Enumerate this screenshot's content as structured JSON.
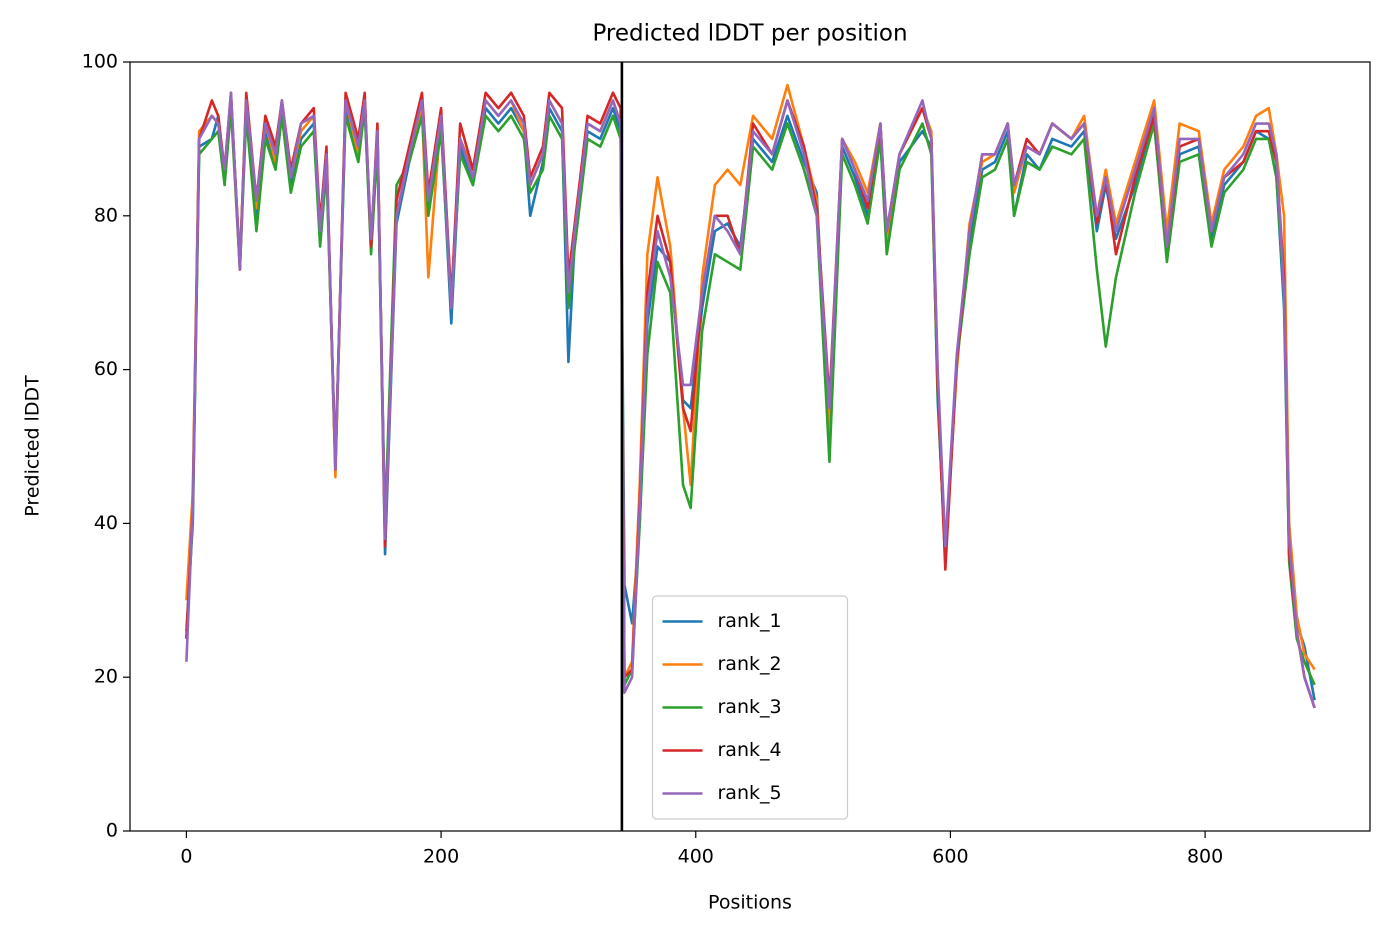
{
  "chart_data": {
    "type": "line",
    "title": "Predicted lDDT per position",
    "xlabel": "Positions",
    "ylabel": "Predicted lDDT",
    "xlim": [
      -44.3,
      929.5
    ],
    "ylim": [
      0,
      100
    ],
    "xticks": [
      0,
      200,
      400,
      600,
      800
    ],
    "yticks": [
      0,
      20,
      40,
      60,
      80,
      100
    ],
    "legend": "lower center",
    "vlines": [
      {
        "x": 342,
        "color": "#000000"
      }
    ],
    "x": [
      0,
      5,
      10,
      20,
      25,
      30,
      35,
      42,
      47,
      55,
      62,
      70,
      75,
      82,
      90,
      100,
      105,
      110,
      117,
      125,
      135,
      140,
      145,
      150,
      156,
      165,
      175,
      185,
      190,
      200,
      208,
      215,
      225,
      235,
      245,
      255,
      265,
      270,
      280,
      285,
      295,
      300,
      305,
      315,
      325,
      335,
      341,
      344,
      350,
      356,
      362,
      370,
      380,
      390,
      396,
      405,
      415,
      425,
      435,
      445,
      460,
      472,
      485,
      495,
      505,
      515,
      525,
      535,
      545,
      550,
      560,
      578,
      585,
      590,
      596,
      605,
      615,
      625,
      635,
      645,
      650,
      660,
      670,
      680,
      695,
      705,
      715,
      722,
      730,
      745,
      760,
      770,
      780,
      795,
      805,
      815,
      830,
      840,
      850,
      856,
      862,
      866,
      872,
      878,
      886
    ],
    "series": [
      {
        "name": "rank_1",
        "color": "#1f77b4",
        "values": [
          26,
          40,
          89,
          90,
          93,
          85,
          95,
          74,
          94,
          80,
          91,
          87,
          94,
          84,
          90,
          92,
          77,
          87,
          48,
          94,
          88,
          94,
          76,
          90,
          36,
          79,
          87,
          94,
          81,
          92,
          66,
          89,
          84,
          94,
          92,
          94,
          91,
          80,
          87,
          94,
          91,
          61,
          77,
          91,
          90,
          94,
          91,
          32,
          27,
          40,
          66,
          76,
          74,
          56,
          55,
          68,
          78,
          79,
          76,
          90,
          87,
          93,
          87,
          83,
          50,
          89,
          85,
          80,
          90,
          76,
          87,
          91,
          89,
          56,
          36,
          61,
          76,
          86,
          87,
          91,
          80,
          88,
          86,
          90,
          89,
          91,
          78,
          84,
          77,
          84,
          92,
          75,
          88,
          89,
          77,
          84,
          87,
          91,
          90,
          85,
          68,
          36,
          27,
          24,
          17
        ]
      },
      {
        "name": "rank_2",
        "color": "#ff7f0e",
        "values": [
          30,
          44,
          91,
          93,
          92,
          86,
          95,
          74,
          95,
          81,
          92,
          87,
          94,
          85,
          91,
          93,
          78,
          88,
          46,
          95,
          88,
          95,
          76,
          91,
          38,
          80,
          88,
          94,
          72,
          93,
          69,
          90,
          86,
          95,
          93,
          95,
          91,
          84,
          88,
          95,
          92,
          70,
          78,
          92,
          91,
          95,
          92,
          20,
          22,
          45,
          75,
          85,
          76,
          55,
          45,
          72,
          84,
          86,
          84,
          93,
          90,
          97,
          89,
          82,
          52,
          90,
          87,
          83,
          92,
          77,
          88,
          94,
          91,
          58,
          36,
          60,
          79,
          87,
          88,
          92,
          83,
          89,
          88,
          92,
          90,
          93,
          80,
          86,
          79,
          87,
          95,
          78,
          92,
          91,
          79,
          86,
          89,
          93,
          94,
          88,
          80,
          40,
          28,
          23,
          21
        ]
      },
      {
        "name": "rank_3",
        "color": "#2ca02c",
        "values": [
          25,
          41,
          88,
          90,
          91,
          84,
          94,
          73,
          93,
          78,
          90,
          86,
          93,
          83,
          89,
          91,
          76,
          86,
          48,
          93,
          87,
          94,
          75,
          89,
          40,
          84,
          87,
          93,
          80,
          91,
          68,
          88,
          84,
          93,
          91,
          93,
          90,
          83,
          86,
          93,
          90,
          68,
          76,
          90,
          89,
          93,
          90,
          19,
          21,
          40,
          62,
          74,
          70,
          45,
          42,
          65,
          75,
          74,
          73,
          89,
          86,
          92,
          86,
          80,
          48,
          88,
          84,
          79,
          90,
          75,
          86,
          92,
          88,
          57,
          35,
          61,
          75,
          85,
          86,
          90,
          80,
          87,
          86,
          89,
          88,
          90,
          73,
          63,
          72,
          83,
          92,
          74,
          87,
          88,
          76,
          83,
          86,
          90,
          90,
          85,
          70,
          35,
          25,
          22,
          19
        ]
      },
      {
        "name": "rank_4",
        "color": "#d62728",
        "values": [
          25,
          42,
          90,
          95,
          93,
          86,
          96,
          73,
          96,
          82,
          93,
          89,
          95,
          86,
          92,
          94,
          79,
          89,
          47,
          96,
          90,
          96,
          76,
          92,
          37,
          82,
          89,
          96,
          83,
          94,
          69,
          92,
          86,
          96,
          94,
          96,
          93,
          85,
          89,
          96,
          94,
          72,
          79,
          93,
          92,
          96,
          94,
          20,
          21,
          43,
          70,
          80,
          74,
          55,
          52,
          70,
          80,
          80,
          75,
          92,
          88,
          95,
          89,
          81,
          56,
          90,
          86,
          81,
          92,
          78,
          88,
          94,
          90,
          58,
          34,
          61,
          78,
          88,
          88,
          92,
          84,
          90,
          88,
          92,
          90,
          92,
          79,
          85,
          75,
          85,
          93,
          76,
          89,
          90,
          78,
          85,
          87,
          91,
          91,
          87,
          72,
          36,
          26,
          20,
          16
        ]
      },
      {
        "name": "rank_5",
        "color": "#9467bd",
        "values": [
          22,
          42,
          90,
          93,
          92,
          86,
          96,
          73,
          95,
          82,
          92,
          88,
          95,
          85,
          92,
          93,
          78,
          88,
          47,
          95,
          89,
          95,
          77,
          91,
          38,
          80,
          88,
          95,
          82,
          93,
          68,
          90,
          85,
          95,
          93,
          95,
          92,
          84,
          88,
          95,
          92,
          70,
          78,
          92,
          91,
          95,
          92,
          18,
          20,
          42,
          68,
          78,
          72,
          58,
          58,
          70,
          80,
          78,
          75,
          91,
          88,
          95,
          88,
          80,
          55,
          90,
          86,
          82,
          92,
          78,
          88,
          95,
          90,
          60,
          37,
          62,
          78,
          88,
          88,
          92,
          84,
          89,
          88,
          92,
          90,
          92,
          80,
          85,
          78,
          86,
          94,
          76,
          90,
          90,
          78,
          85,
          88,
          92,
          92,
          88,
          70,
          38,
          26,
          20,
          16
        ]
      }
    ]
  }
}
